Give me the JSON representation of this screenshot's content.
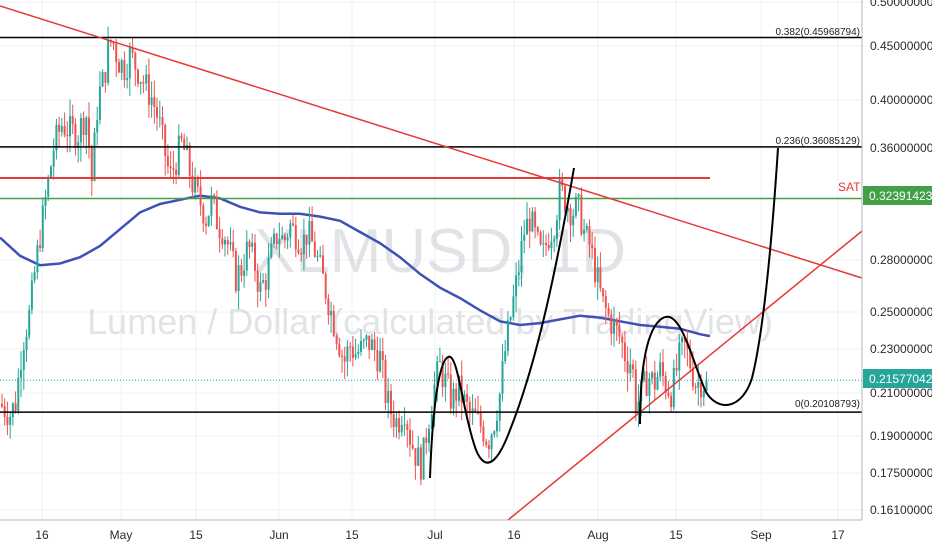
{
  "chart_data": {
    "type": "candlestick",
    "symbol_watermark": "XLMUSD, 1D",
    "description_watermark": "Lumen / Dollar (calculated by TradingView)",
    "x_ticks": [
      "16",
      "May",
      "15",
      "Jun",
      "15",
      "Jul",
      "16",
      "Aug",
      "15",
      "Sep",
      "17"
    ],
    "y_ticks": [
      "0.50000000",
      "0.45000000",
      "0.40000000",
      "0.36000000",
      "0.28000000",
      "0.25000000",
      "0.23000000",
      "0.21000000",
      "0.19000000",
      "0.17500000",
      "0.16100000"
    ],
    "price_tags": [
      {
        "label": "0.32391423",
        "color": "#43a047"
      },
      {
        "label": "0.21577042",
        "color": "#26a69a"
      }
    ],
    "sat_label": "SAT",
    "fib_levels": [
      {
        "label": "0.382(0.45968794)",
        "value": 0.4597
      },
      {
        "label": "0.236(0.36085129)",
        "value": 0.3609
      },
      {
        "label": "0(0.20108793)",
        "value": 0.2011
      }
    ],
    "horizontal_lines": [
      {
        "value": 0.3386,
        "color": "#e53935"
      },
      {
        "value": 0.3239,
        "color": "#43a047"
      }
    ],
    "colors": {
      "up": "#26a69a",
      "down": "#ef5350",
      "moving_average": "#3f51b5",
      "trendline": "#e53935",
      "projection": "#000000"
    }
  }
}
